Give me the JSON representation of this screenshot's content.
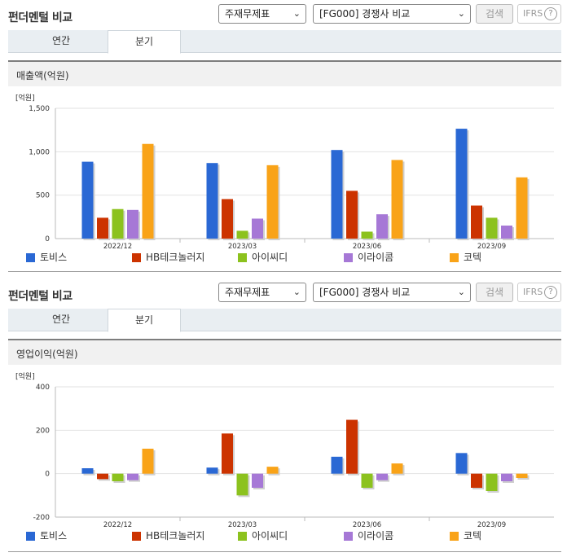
{
  "colors": {
    "tobis": "#2a68d4",
    "hb": "#cc3300",
    "ai": "#8cc21e",
    "irai": "#a678d6",
    "kotek": "#f9a318"
  },
  "legend": [
    {
      "key": "tobis",
      "label": "토비스"
    },
    {
      "key": "hb",
      "label": "HB테크놀러지"
    },
    {
      "key": "ai",
      "label": "아이씨디"
    },
    {
      "key": "irai",
      "label": "이라이콤"
    },
    {
      "key": "kotek",
      "label": "코텍"
    }
  ],
  "sections": [
    {
      "title": "펀더멘털 비교",
      "select_a": "주재무제표",
      "select_b": "[FG000] 경쟁사 비교",
      "search_label": "검색",
      "ifrs_label": "IFRS",
      "help_icon": "question-icon",
      "tabs": [
        "연간",
        "분기"
      ],
      "active_tab": "분기",
      "chart_title": "매출액(억원)",
      "chart_data": {
        "type": "bar",
        "unit_label": "[억원]",
        "ylim": [
          0,
          1500
        ],
        "yticks": [
          0,
          500,
          1000,
          1500
        ],
        "ytick_labels": [
          "0",
          "500",
          "1,000",
          "1,500"
        ],
        "categories": [
          "2022/12",
          "2023/03",
          "2023/06",
          "2023/09"
        ],
        "series": [
          {
            "name": "토비스",
            "key": "tobis",
            "values": [
              885,
              870,
              1020,
              1265
            ]
          },
          {
            "name": "HB테크놀러지",
            "key": "hb",
            "values": [
              240,
              455,
              550,
              380
            ]
          },
          {
            "name": "아이씨디",
            "key": "ai",
            "values": [
              340,
              90,
              80,
              240
            ]
          },
          {
            "name": "이라이콤",
            "key": "irai",
            "values": [
              330,
              230,
              280,
              150
            ]
          },
          {
            "name": "코텍",
            "key": "kotek",
            "values": [
              1090,
              845,
              905,
              705
            ]
          }
        ],
        "grid": true,
        "legend_position": "bottom"
      }
    },
    {
      "title": "펀더멘털 비교",
      "select_a": "주재무제표",
      "select_b": "[FG000] 경쟁사 비교",
      "search_label": "검색",
      "ifrs_label": "IFRS",
      "help_icon": "question-icon",
      "tabs": [
        "연간",
        "분기"
      ],
      "active_tab": "분기",
      "chart_title": "영업이익(억원)",
      "chart_data": {
        "type": "bar",
        "unit_label": "[억원]",
        "ylim": [
          -200,
          400
        ],
        "yticks": [
          -200,
          0,
          200,
          400
        ],
        "ytick_labels": [
          "-200",
          "0",
          "200",
          "400"
        ],
        "categories": [
          "2022/12",
          "2023/03",
          "2023/06",
          "2023/09"
        ],
        "series": [
          {
            "name": "토비스",
            "key": "tobis",
            "values": [
              25,
              28,
              78,
              95
            ]
          },
          {
            "name": "HB테크놀러지",
            "key": "hb",
            "values": [
              -25,
              185,
              248,
              -65
            ]
          },
          {
            "name": "아이씨디",
            "key": "ai",
            "values": [
              -35,
              -100,
              -65,
              -80
            ]
          },
          {
            "name": "이라이콤",
            "key": "irai",
            "values": [
              -30,
              -65,
              -30,
              -35
            ]
          },
          {
            "name": "코텍",
            "key": "kotek",
            "values": [
              115,
              32,
              47,
              -20
            ]
          }
        ],
        "grid": true,
        "legend_position": "bottom"
      }
    }
  ]
}
